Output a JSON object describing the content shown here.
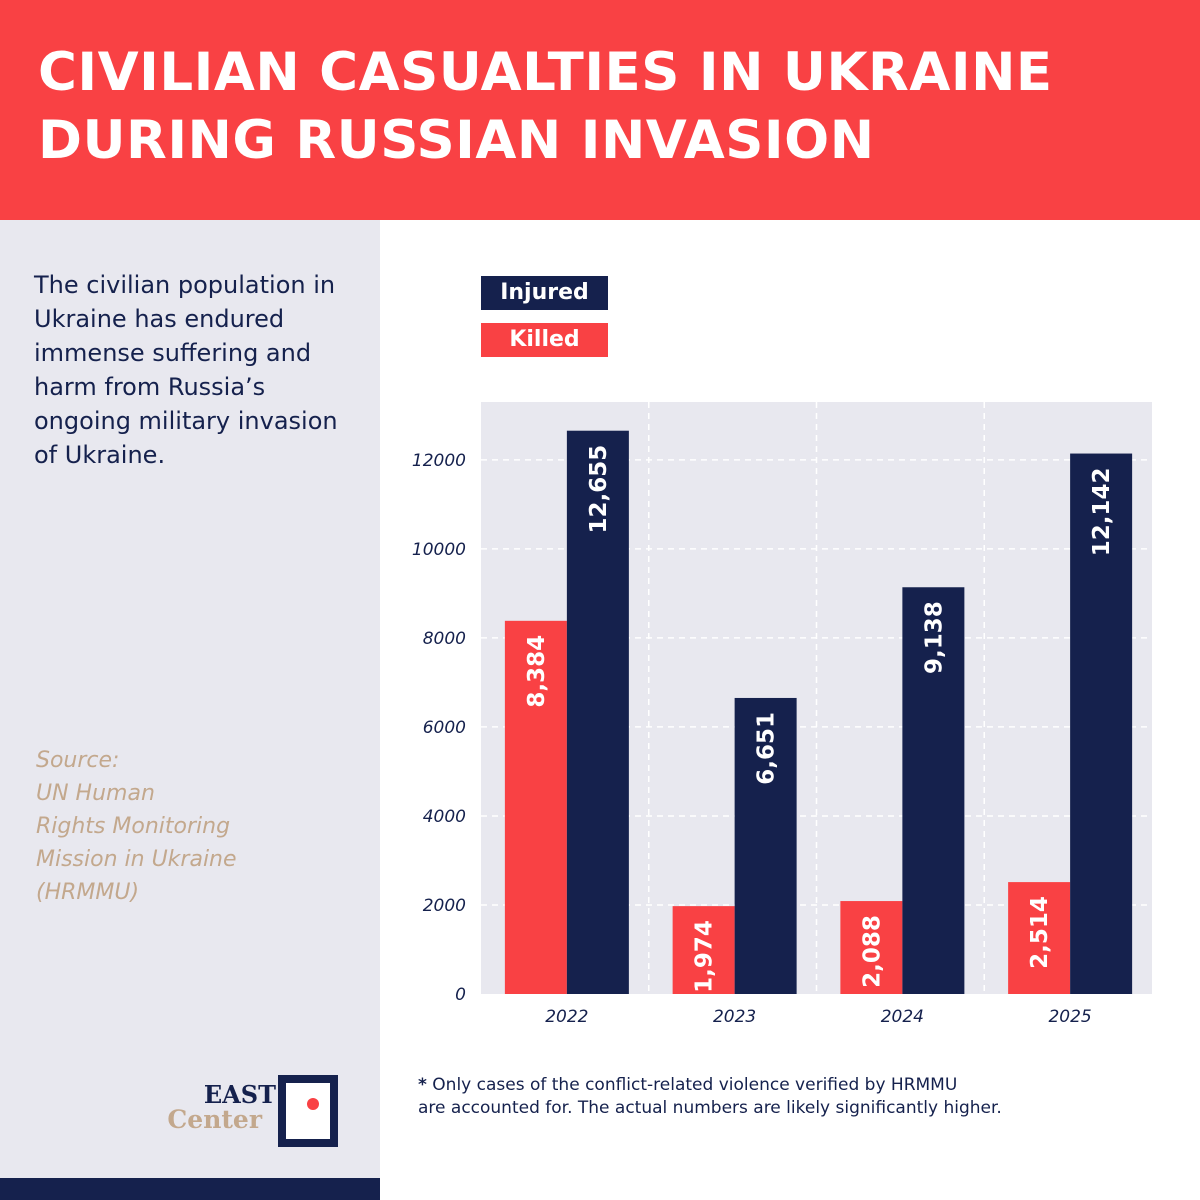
{
  "header": {
    "title_line1": "CIVILIAN CASUALTIES IN UKRAINE",
    "title_line2": "DURING RUSSIAN INVASION"
  },
  "sidebar": {
    "intro": "The civilian population in Ukraine has endured immense suffering and harm from Russia’s ongoing military invasion of Ukraine.",
    "source_lines": [
      "Source:",
      "UN Human",
      "Rights Monitoring",
      "Mission in Ukraine",
      "(HRMMU)"
    ]
  },
  "logo": {
    "line1": "EAST",
    "line2": "Center"
  },
  "legend": {
    "injured": "Injured",
    "killed": "Killed"
  },
  "colors": {
    "injured": "#15214d",
    "killed": "#f94144",
    "plot_bg": "#e8e8ef",
    "accent": "#f94144"
  },
  "chart_data": {
    "type": "bar",
    "categories": [
      "2022",
      "2023",
      "2024",
      "2025"
    ],
    "series": [
      {
        "name": "Killed",
        "values": [
          8384,
          1974,
          2088,
          2514
        ],
        "labels": [
          "8,384",
          "1,974",
          "2,088",
          "2,514"
        ]
      },
      {
        "name": "Injured",
        "values": [
          12655,
          6651,
          9138,
          12142
        ],
        "labels": [
          "12,655",
          "6,651",
          "9,138",
          "12,142"
        ]
      }
    ],
    "yticks": [
      "0",
      "2000",
      "4000",
      "6000",
      "8000",
      "10000",
      "12000"
    ],
    "ylim": [
      0,
      13300
    ],
    "title": "",
    "xlabel": "",
    "ylabel": "",
    "grid": true,
    "legend_position": "top-left"
  },
  "footnote": {
    "star": "*",
    "line1": " Only cases of the conflict-related violence verified by HRMMU",
    "line2": "are accounted for. The actual numbers are likely significantly higher."
  }
}
